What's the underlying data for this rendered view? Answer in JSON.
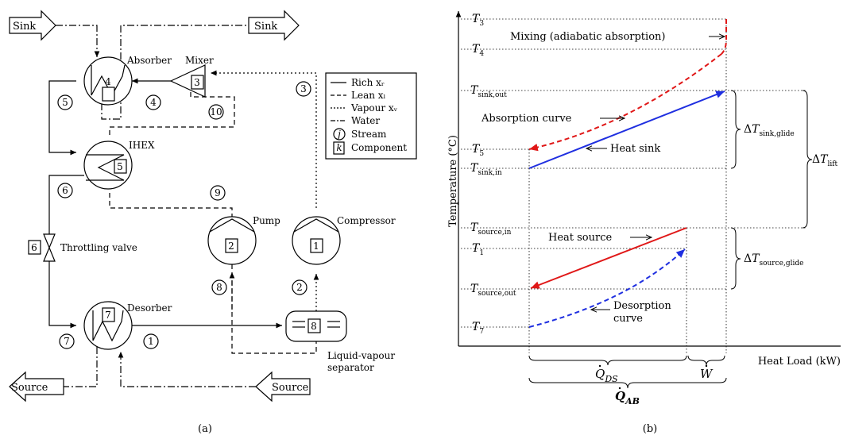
{
  "panel_a": {
    "sink_left": "Sink",
    "sink_right": "Sink",
    "source_left": "Source",
    "source_right": "Source",
    "absorber": "Absorber",
    "mixer": "Mixer",
    "ihex": "IHEX",
    "throttling_valve": "Throttling valve",
    "desorber": "Desorber",
    "pump": "Pump",
    "compressor": "Compressor",
    "separator_line1": "Liquid-vapour",
    "separator_line2": "separator",
    "components": {
      "compressor": "1",
      "pump": "2",
      "mixer": "3",
      "absorber": "4",
      "ihex": "5",
      "throttling_valve": "6",
      "desorber": "7",
      "separator": "8"
    },
    "streams": {
      "s1": "1",
      "s2": "2",
      "s3": "3",
      "s4": "4",
      "s5": "5",
      "s6": "6",
      "s7": "7",
      "s8": "8",
      "s9": "9",
      "s10": "10"
    },
    "legend": {
      "rich": "Rich xᵣ",
      "lean": "Lean xₗ",
      "vapour": "Vapour xᵥ",
      "water": "Water",
      "stream_symbol": "j",
      "stream": "Stream",
      "component_symbol": "k",
      "component": "Component"
    },
    "caption": "(a)"
  },
  "panel_b": {
    "caption": "(b)"
  },
  "chart_data": {
    "type": "line",
    "xlabel": "Heat Load (kW)",
    "ylabel": "Temperature (°C)",
    "levels": [
      {
        "sub": "sink,in"
      },
      {
        "sub": "sink,out"
      },
      {
        "sub": "4"
      },
      {
        "sub": "3"
      },
      {
        "sub": "5"
      },
      {
        "sub": "source,in"
      },
      {
        "sub": "1"
      },
      {
        "sub": "source,out"
      },
      {
        "sub": "7"
      }
    ],
    "series": [
      {
        "name": "Mixing (adiabatic absorption)",
        "color": "#e01818",
        "style": "dashed"
      },
      {
        "name": "Absorption curve",
        "color": "#e01818",
        "style": "dashed"
      },
      {
        "name": "Heat sink",
        "color": "#1f2fe0",
        "style": "solid"
      },
      {
        "name": "Heat source",
        "color": "#e01818",
        "style": "solid"
      },
      {
        "name": "Desorption curve",
        "color": "#1f2fe0",
        "style": "dashed"
      }
    ],
    "annotations": {
      "mixing": "Mixing (adiabatic absorption)",
      "absorption": "Absorption curve",
      "heat_sink": "Heat sink",
      "heat_source": "Heat source",
      "desorption_line1": "Desorption",
      "desorption_line2": "curve"
    },
    "deltas": [
      {
        "symbol": "Δ",
        "sub": "sink,glide"
      },
      {
        "symbol": "Δ",
        "sub": "source,glide"
      },
      {
        "symbol": "Δ",
        "sub": "lift"
      }
    ],
    "heat_quantities": [
      {
        "symbol": "Q",
        "sub": "DS"
      },
      {
        "symbol": "W",
        "sub": ""
      },
      {
        "symbol": "Q",
        "sub": "AB"
      }
    ]
  }
}
